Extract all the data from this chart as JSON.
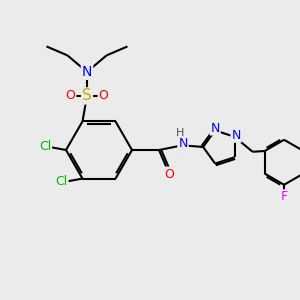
{
  "bg_color": "#ebebeb",
  "bond_color": "#000000",
  "bond_lw": 1.5,
  "atom_colors": {
    "N": "#0000ff",
    "O": "#ff0000",
    "S": "#ccaa00",
    "Cl": "#00bb00",
    "F": "#ff00ff",
    "C": "#000000",
    "H": "#555555"
  },
  "font_size": 9
}
